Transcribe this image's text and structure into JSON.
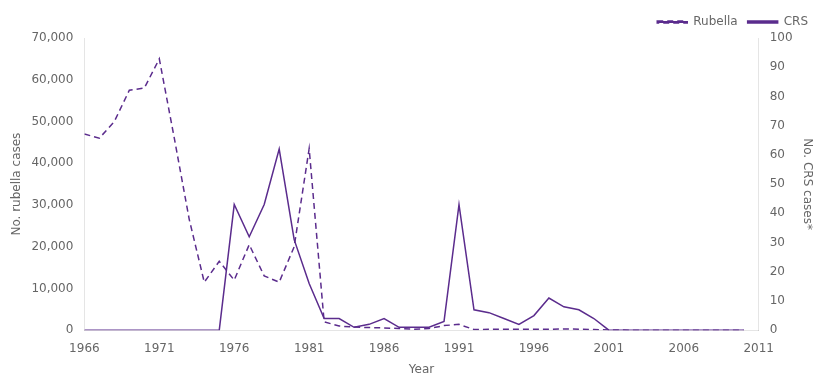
{
  "chart_data": {
    "type": "line",
    "xlabel": "Year",
    "ylabel": "No. rubella cases",
    "y2label": "No. CRS cases*",
    "x": [
      1966,
      1967,
      1968,
      1969,
      1970,
      1971,
      1972,
      1973,
      1974,
      1975,
      1976,
      1977,
      1978,
      1979,
      1980,
      1981,
      1982,
      1983,
      1984,
      1985,
      1986,
      1987,
      1988,
      1989,
      1990,
      1991,
      1992,
      1993,
      1994,
      1995,
      1996,
      1997,
      1998,
      1999,
      2000,
      2001,
      2002,
      2003,
      2004,
      2005,
      2006,
      2007,
      2008,
      2009,
      2010
    ],
    "series": [
      {
        "name": "Rubella",
        "color": "#5B2C8D",
        "line_style": "dashed",
        "values": [
          47000,
          46000,
          50000,
          57500,
          58000,
          65000,
          46000,
          26500,
          11500,
          16500,
          12000,
          20500,
          13000,
          11500,
          20000,
          43500,
          2000,
          1000,
          750,
          630,
          550,
          400,
          225,
          400,
          1100,
          1400,
          160,
          200,
          230,
          200,
          250,
          200,
          300,
          250,
          170,
          25,
          18,
          7,
          10,
          11,
          11,
          12,
          16,
          3,
          6
        ]
      },
      {
        "name": "CRS",
        "color": "#5B2C8D",
        "line_style": "solid",
        "axis": "y2",
        "values": [
          0,
          0,
          0,
          0,
          0,
          0,
          0,
          0,
          0,
          0,
          43,
          32,
          43,
          62,
          31,
          16,
          4,
          4,
          1,
          2,
          4,
          1,
          1,
          1,
          3,
          43,
          7,
          6,
          4,
          2,
          5,
          11,
          8,
          7,
          4,
          0,
          0,
          0,
          0,
          0,
          0,
          0,
          0,
          0,
          0
        ]
      }
    ],
    "xlim": [
      1966,
      2011
    ],
    "xticks": [
      1966,
      1971,
      1976,
      1981,
      1986,
      1991,
      1996,
      2001,
      2006,
      2011
    ],
    "ylim": [
      0,
      70000
    ],
    "yticks": [
      0,
      {
        "value": 10000,
        "label": "10,000"
      },
      {
        "value": 20000,
        "label": "20,000"
      },
      {
        "value": 30000,
        "label": "30,000"
      },
      {
        "value": 40000,
        "label": "40,000"
      },
      {
        "value": 50000,
        "label": "50,000"
      },
      {
        "value": 60000,
        "label": "60,000"
      },
      {
        "value": 70000,
        "label": "70,000"
      }
    ],
    "y2lim": [
      0,
      100
    ],
    "y2ticks": [
      0,
      10,
      20,
      30,
      40,
      50,
      60,
      70,
      80,
      90,
      100
    ],
    "grid": false,
    "legend": "upper right"
  }
}
